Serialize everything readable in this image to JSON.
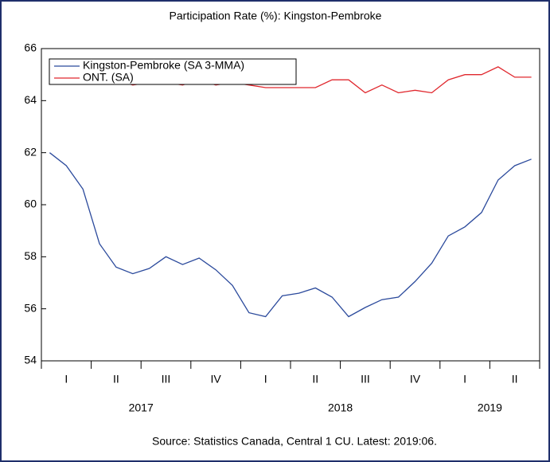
{
  "chart_data": {
    "type": "line",
    "title": "Participation Rate (%): Kingston-Pembroke",
    "source": "Source: Statistics Canada, Central 1 CU. Latest: 2019:06.",
    "quarter_labels": [
      "I",
      "II",
      "III",
      "IV",
      "I",
      "II",
      "III",
      "IV",
      "I",
      "II"
    ],
    "year_labels": [
      "2017",
      "2018",
      "2019"
    ],
    "series": [
      {
        "name": "Kingston-Pembroke (SA 3-MMA)",
        "color": "#2b4a9c",
        "values": [
          62.0,
          61.5,
          60.6,
          58.5,
          57.6,
          57.35,
          57.55,
          58.0,
          57.7,
          57.95,
          57.5,
          56.9,
          55.85,
          55.7,
          56.5,
          56.6,
          56.8,
          56.45,
          55.7,
          56.05,
          56.35,
          56.45,
          57.05,
          57.75,
          58.8,
          59.15,
          59.7,
          60.95,
          61.5,
          61.75
        ]
      },
      {
        "name": "ONT. (SA)",
        "color": "#e0282e",
        "values": [
          64.7,
          64.8,
          64.9,
          64.7,
          64.8,
          64.6,
          64.7,
          64.7,
          64.6,
          64.8,
          64.6,
          64.7,
          64.6,
          64.5,
          64.5,
          64.5,
          64.5,
          64.8,
          64.8,
          64.3,
          64.6,
          64.3,
          64.4,
          64.3,
          64.8,
          65.0,
          65.0,
          65.3,
          64.9,
          64.9
        ]
      }
    ],
    "ylim": [
      54,
      66
    ],
    "yticks": [
      54,
      56,
      58,
      60,
      62,
      64,
      66
    ],
    "grid": false,
    "legend": "upper left"
  }
}
